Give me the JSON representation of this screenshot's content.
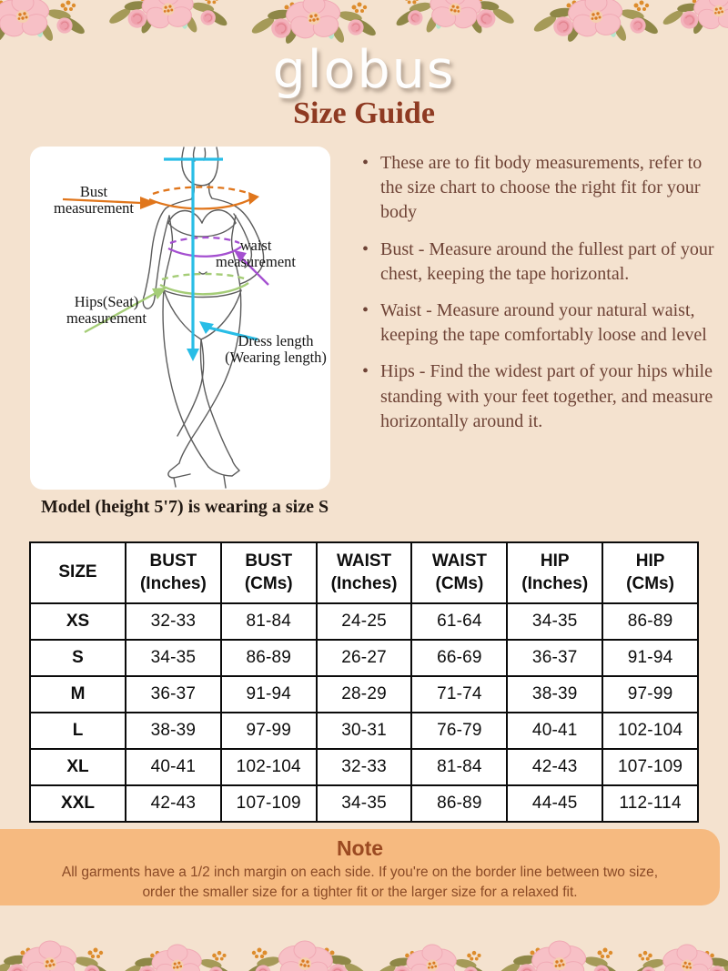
{
  "header": {
    "logo": "globus",
    "title": "Size Guide"
  },
  "diagram": {
    "labels": {
      "bust": [
        "Bust",
        "measurement"
      ],
      "waist": [
        "waist",
        "measurement"
      ],
      "hips": [
        "Hips(Seat)",
        "measurement"
      ],
      "dress": [
        "Dress length",
        "(Wearing length)"
      ]
    },
    "colors": {
      "bust": "#e0761c",
      "waist": "#a44fd0",
      "hips": "#a5cd77",
      "dress": "#29bde6"
    },
    "caption": "Model (height 5'7) is wearing a size S"
  },
  "instructions": [
    "These are to fit body measurements, refer to the size chart to choose the right fit for your body",
    "Bust - Measure around the fullest part of your chest, keeping the tape horizontal.",
    "Waist - Measure around your natural waist, keeping the tape comfortably loose and level",
    "Hips - Find the widest part of your hips while standing with your feet together, and measure horizontally around it."
  ],
  "size_table": {
    "columns": [
      {
        "label": "SIZE",
        "unit": ""
      },
      {
        "label": "BUST",
        "unit": "(Inches)"
      },
      {
        "label": "BUST",
        "unit": "(CMs)"
      },
      {
        "label": "WAIST",
        "unit": "(Inches)"
      },
      {
        "label": "WAIST",
        "unit": "(CMs)"
      },
      {
        "label": "HIP",
        "unit": "(Inches)"
      },
      {
        "label": "HIP",
        "unit": "(CMs)"
      }
    ],
    "rows": [
      {
        "size": "XS",
        "values": [
          "32-33",
          "81-84",
          "24-25",
          "61-64",
          "34-35",
          "86-89"
        ]
      },
      {
        "size": "S",
        "values": [
          "34-35",
          "86-89",
          "26-27",
          "66-69",
          "36-37",
          "91-94"
        ]
      },
      {
        "size": "M",
        "values": [
          "36-37",
          "91-94",
          "28-29",
          "71-74",
          "38-39",
          "97-99"
        ]
      },
      {
        "size": "L",
        "values": [
          "38-39",
          "97-99",
          "30-31",
          "76-79",
          "40-41",
          "102-104"
        ]
      },
      {
        "size": "XL",
        "values": [
          "40-41",
          "102-104",
          "32-33",
          "81-84",
          "42-43",
          "107-109"
        ]
      },
      {
        "size": "XXL",
        "values": [
          "42-43",
          "107-109",
          "34-35",
          "86-89",
          "44-45",
          "112-114"
        ]
      }
    ]
  },
  "note": {
    "title": "Note",
    "body": "All garments have a 1/2 inch margin on each side. If you're on the border line between two size, order the smaller size for a tighter fit or the larger size for a relaxed fit."
  }
}
